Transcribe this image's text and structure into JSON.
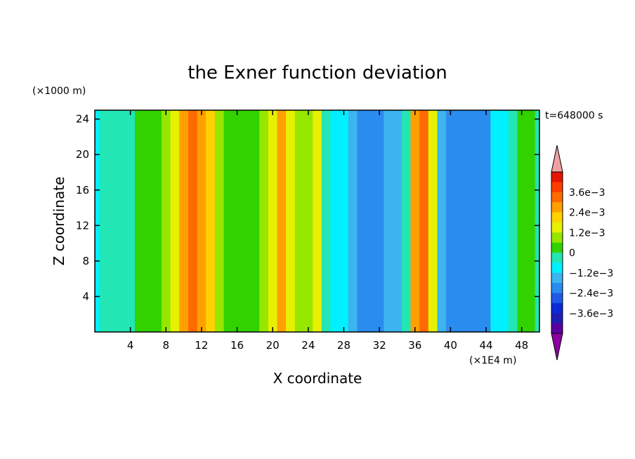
{
  "chart_data": {
    "type": "heatmap",
    "title": "the Exner function deviation",
    "xlabel": "X coordinate",
    "ylabel": "Z coordinate",
    "x_unit": "(×1E4 m)",
    "y_unit": "(×1000 m)",
    "time_label": "t=648000 s",
    "xlim": [
      0,
      50
    ],
    "ylim": [
      0,
      25
    ],
    "x_ticks": [
      4,
      8,
      12,
      16,
      20,
      24,
      28,
      32,
      36,
      40,
      44,
      48
    ],
    "y_ticks": [
      4,
      8,
      12,
      16,
      20,
      24
    ],
    "colorbar": {
      "levels": [
        -0.0042,
        -0.0036,
        -0.003,
        -0.0024,
        -0.0018,
        -0.0012,
        -0.0006,
        0,
        0.0006,
        0.0012,
        0.0018,
        0.0024,
        0.003,
        0.0036
      ],
      "colors": [
        "#5a00a0",
        "#1e1eb4",
        "#0a2ad7",
        "#1e5ae6",
        "#2b8cf0",
        "#3cb4f0",
        "#00f0ff",
        "#22e6b4",
        "#32d200",
        "#96e600",
        "#e6f000",
        "#ffd200",
        "#ffa000",
        "#ff6a00",
        "#ff3c00",
        "#e61400"
      ],
      "under_color": "#8c00a0",
      "over_color": "#f0a0a0",
      "labels": [
        {
          "value": 0.0036,
          "text": "3.6e−3"
        },
        {
          "value": 0.0024,
          "text": "2.4e−3"
        },
        {
          "value": 0.0012,
          "text": "1.2e−3"
        },
        {
          "value": 0,
          "text": "0"
        },
        {
          "value": -0.0012,
          "text": "−1.2e−3"
        },
        {
          "value": -0.0024,
          "text": "−2.4e−3"
        },
        {
          "value": -0.0036,
          "text": "−3.6e−3"
        }
      ]
    },
    "columns": {
      "x": [
        0,
        1,
        2,
        3,
        4,
        5,
        6,
        7,
        8,
        9,
        10,
        11,
        12,
        13,
        14,
        15,
        16,
        17,
        18,
        19,
        20,
        21,
        22,
        23,
        24,
        25,
        26,
        27,
        28,
        29,
        30,
        31,
        32,
        33,
        34,
        35,
        36,
        37,
        38,
        39,
        40,
        41,
        42,
        43,
        44,
        45,
        46,
        47,
        48,
        49,
        50
      ],
      "value": [
        -0.0007,
        -0.0005,
        -0.0006,
        -0.0004,
        -0.0003,
        0.0,
        0.0002,
        0.0003,
        0.0008,
        0.0016,
        0.0026,
        0.0031,
        0.0028,
        0.0018,
        0.0006,
        0.0002,
        0.0001,
        0.0004,
        0.0002,
        0.0009,
        0.0016,
        0.0024,
        0.0016,
        0.0009,
        0.001,
        0.0014,
        -0.0005,
        -0.001,
        -0.0012,
        -0.0015,
        -0.0019,
        -0.0023,
        -0.002,
        -0.0018,
        -0.0014,
        -0.0004,
        0.0026,
        0.0034,
        0.0012,
        -0.0014,
        -0.0019,
        -0.0023,
        -0.0024,
        -0.0022,
        -0.0019,
        -0.0012,
        -0.0008,
        -0.0003,
        0.0002,
        0.0,
        -0.0003
      ]
    }
  }
}
